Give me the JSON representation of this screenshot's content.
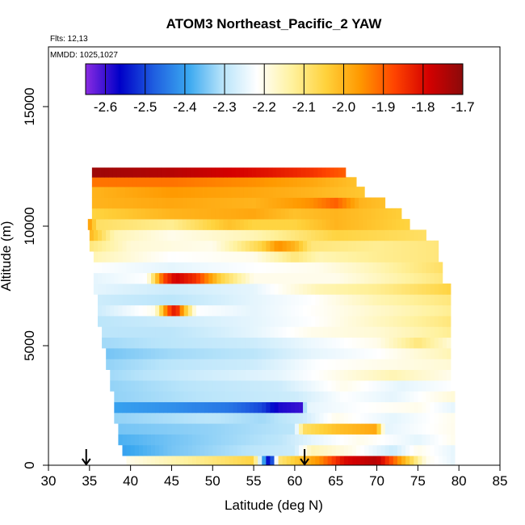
{
  "chart_data": {
    "type": "heatmap",
    "title": "ATOM3 Northeast_Pacific_2 YAW",
    "annotations": [
      "Flts: 12,13",
      "MMDD: 1025,1027"
    ],
    "xlabel": "Latitude (deg N)",
    "ylabel": "Altitude (m)",
    "xlim": [
      30,
      85
    ],
    "ylim": [
      0,
      17500
    ],
    "x_ticks": [
      30,
      35,
      40,
      45,
      50,
      55,
      60,
      65,
      70,
      75,
      80,
      85
    ],
    "y_ticks": [
      0,
      5000,
      10000,
      15000
    ],
    "grid": false,
    "colorbar": {
      "placement": "top-inside",
      "range": [
        -2.65,
        -1.7
      ],
      "ticks": [
        -2.6,
        -2.5,
        -2.4,
        -2.3,
        -2.2,
        -2.1,
        -2.0,
        -1.9,
        -1.8,
        -1.7
      ],
      "tick_labels": [
        "-2.6",
        "-2.5",
        "-2.4",
        "-2.3",
        "-2.2",
        "-2.1",
        "-2.0",
        "-1.9",
        "-1.8",
        "-1.7"
      ],
      "colors": [
        "#8a2be2",
        "#0000c8",
        "#1f5fe0",
        "#3aa8f0",
        "#b8e4fa",
        "#ffffff",
        "#fff2a0",
        "#ffd23c",
        "#ff9900",
        "#ff4400",
        "#d40000",
        "#8b0a0a"
      ]
    },
    "profile_markers_lat": [
      34.6,
      61.2
    ],
    "bands": [
      {
        "alt_low": 0,
        "alt_high": 400,
        "lat_start": 39.5,
        "lat_end": 79.5,
        "stops": [
          [
            39.5,
            -2.2
          ],
          [
            50,
            -2.1
          ],
          [
            55,
            -2.05
          ],
          [
            57,
            -2.62
          ],
          [
            58,
            -2.1
          ],
          [
            63,
            -1.95
          ],
          [
            66,
            -1.8
          ],
          [
            70,
            -1.75
          ],
          [
            72,
            -1.9
          ],
          [
            76,
            -2.2
          ],
          [
            79.5,
            -2.25
          ]
        ]
      },
      {
        "alt_low": 400,
        "alt_high": 850,
        "lat_start": 39,
        "lat_end": 79.5,
        "stops": [
          [
            39,
            -2.4
          ],
          [
            45,
            -2.35
          ],
          [
            55,
            -2.3
          ],
          [
            60,
            -2.28
          ],
          [
            62,
            -2.15
          ],
          [
            67,
            -2.2
          ],
          [
            72,
            -2.28
          ],
          [
            75,
            -2.2
          ],
          [
            79.5,
            -2.25
          ]
        ]
      },
      {
        "alt_low": 850,
        "alt_high": 1300,
        "lat_start": 38.5,
        "lat_end": 79.5,
        "stops": [
          [
            38.5,
            -2.38
          ],
          [
            50,
            -2.33
          ],
          [
            58,
            -2.3
          ],
          [
            62,
            -2.25
          ],
          [
            68,
            -2.2
          ],
          [
            75,
            -2.25
          ],
          [
            79.5,
            -2.2
          ]
        ]
      },
      {
        "alt_low": 1300,
        "alt_high": 1750,
        "lat_start": 38.5,
        "lat_end": 79.5,
        "stops": [
          [
            38.5,
            -2.35
          ],
          [
            50,
            -2.33
          ],
          [
            60,
            -2.3
          ],
          [
            61,
            -2.08
          ],
          [
            65,
            -2.02
          ],
          [
            70,
            -1.98
          ],
          [
            71,
            -2.25
          ],
          [
            79.5,
            -2.2
          ]
        ]
      },
      {
        "alt_low": 1750,
        "alt_high": 2200,
        "lat_start": 38,
        "lat_end": 79.5,
        "stops": [
          [
            38,
            -2.33
          ],
          [
            50,
            -2.3
          ],
          [
            56,
            -2.32
          ],
          [
            61,
            -2.28
          ],
          [
            65,
            -2.2
          ],
          [
            72,
            -2.25
          ],
          [
            79.5,
            -2.2
          ]
        ]
      },
      {
        "alt_low": 2200,
        "alt_high": 2650,
        "lat_start": 38,
        "lat_end": 79.5,
        "stops": [
          [
            38,
            -2.4
          ],
          [
            45,
            -2.42
          ],
          [
            52,
            -2.45
          ],
          [
            56,
            -2.5
          ],
          [
            58,
            -2.58
          ],
          [
            61,
            -2.6
          ],
          [
            61.3,
            -2.25
          ],
          [
            68,
            -2.22
          ],
          [
            75,
            -2.2
          ],
          [
            79.5,
            -2.25
          ]
        ]
      },
      {
        "alt_low": 2650,
        "alt_high": 3100,
        "lat_start": 38,
        "lat_end": 79.5,
        "stops": [
          [
            38,
            -2.33
          ],
          [
            50,
            -2.3
          ],
          [
            60,
            -2.28
          ],
          [
            66,
            -2.22
          ],
          [
            72,
            -2.25
          ],
          [
            79.5,
            -2.18
          ]
        ]
      },
      {
        "alt_low": 3100,
        "alt_high": 3550,
        "lat_start": 37.5,
        "lat_end": 79,
        "stops": [
          [
            37.5,
            -2.33
          ],
          [
            48,
            -2.3
          ],
          [
            58,
            -2.28
          ],
          [
            66,
            -2.2
          ],
          [
            73,
            -2.25
          ],
          [
            79,
            -2.22
          ]
        ]
      },
      {
        "alt_low": 3550,
        "alt_high": 4000,
        "lat_start": 37.5,
        "lat_end": 79,
        "stops": [
          [
            37.5,
            -2.32
          ],
          [
            48,
            -2.28
          ],
          [
            58,
            -2.25
          ],
          [
            65,
            -2.2
          ],
          [
            72,
            -2.15
          ],
          [
            79,
            -2.2
          ]
        ]
      },
      {
        "alt_low": 4000,
        "alt_high": 4450,
        "lat_start": 37,
        "lat_end": 79,
        "stops": [
          [
            37,
            -2.33
          ],
          [
            45,
            -2.3
          ],
          [
            55,
            -2.28
          ],
          [
            63,
            -2.22
          ],
          [
            70,
            -2.2
          ],
          [
            79,
            -2.18
          ]
        ]
      },
      {
        "alt_low": 4450,
        "alt_high": 4900,
        "lat_start": 37,
        "lat_end": 79,
        "stops": [
          [
            37,
            -2.35
          ],
          [
            45,
            -2.32
          ],
          [
            55,
            -2.3
          ],
          [
            62,
            -2.25
          ],
          [
            70,
            -2.22
          ],
          [
            79,
            -2.15
          ]
        ]
      },
      {
        "alt_low": 4900,
        "alt_high": 5350,
        "lat_start": 36.5,
        "lat_end": 79,
        "stops": [
          [
            36.5,
            -2.32
          ],
          [
            45,
            -2.3
          ],
          [
            55,
            -2.28
          ],
          [
            62,
            -2.24
          ],
          [
            70,
            -2.2
          ],
          [
            75,
            -2.1
          ],
          [
            79,
            -2.18
          ]
        ]
      },
      {
        "alt_low": 5350,
        "alt_high": 5800,
        "lat_start": 36.5,
        "lat_end": 79,
        "stops": [
          [
            36.5,
            -2.3
          ],
          [
            45,
            -2.3
          ],
          [
            55,
            -2.25
          ],
          [
            62,
            -2.2
          ],
          [
            70,
            -2.18
          ],
          [
            79,
            -2.12
          ]
        ]
      },
      {
        "alt_low": 5800,
        "alt_high": 6250,
        "lat_start": 36,
        "lat_end": 79,
        "stops": [
          [
            36,
            -2.3
          ],
          [
            45,
            -2.28
          ],
          [
            55,
            -2.25
          ],
          [
            62,
            -2.22
          ],
          [
            72,
            -2.15
          ],
          [
            79,
            -2.1
          ]
        ]
      },
      {
        "alt_low": 6250,
        "alt_high": 6700,
        "lat_start": 36,
        "lat_end": 79,
        "stops": [
          [
            36,
            -2.28
          ],
          [
            43,
            -2.2
          ],
          [
            44.5,
            -1.9
          ],
          [
            45.5,
            -1.8
          ],
          [
            46.5,
            -2.0
          ],
          [
            48,
            -2.22
          ],
          [
            55,
            -2.25
          ],
          [
            65,
            -2.2
          ],
          [
            79,
            -2.12
          ]
        ]
      },
      {
        "alt_low": 6700,
        "alt_high": 7150,
        "lat_start": 36,
        "lat_end": 79,
        "stops": [
          [
            36,
            -2.28
          ],
          [
            45,
            -2.3
          ],
          [
            55,
            -2.25
          ],
          [
            62,
            -2.22
          ],
          [
            70,
            -2.15
          ],
          [
            79,
            -2.1
          ]
        ]
      },
      {
        "alt_low": 7150,
        "alt_high": 7600,
        "lat_start": 35.5,
        "lat_end": 79,
        "stops": [
          [
            35.5,
            -2.25
          ],
          [
            45,
            -2.28
          ],
          [
            55,
            -2.25
          ],
          [
            63,
            -2.15
          ],
          [
            70,
            -2.12
          ],
          [
            79,
            -2.05
          ]
        ]
      },
      {
        "alt_low": 7600,
        "alt_high": 8050,
        "lat_start": 35.5,
        "lat_end": 78,
        "stops": [
          [
            35.5,
            -2.25
          ],
          [
            42,
            -2.22
          ],
          [
            44,
            -1.88
          ],
          [
            45.5,
            -1.78
          ],
          [
            48,
            -1.85
          ],
          [
            51,
            -2.05
          ],
          [
            55,
            -2.2
          ],
          [
            65,
            -2.2
          ],
          [
            78,
            -2.1
          ]
        ]
      },
      {
        "alt_low": 8050,
        "alt_high": 8500,
        "lat_start": 35.5,
        "lat_end": 78,
        "stops": [
          [
            35.5,
            -2.22
          ],
          [
            45,
            -2.25
          ],
          [
            55,
            -2.22
          ],
          [
            63,
            -2.2
          ],
          [
            70,
            -2.15
          ],
          [
            78,
            -2.08
          ]
        ]
      },
      {
        "alt_low": 8500,
        "alt_high": 8950,
        "lat_start": 35.5,
        "lat_end": 77.5,
        "stops": [
          [
            35.5,
            -2.15
          ],
          [
            45,
            -2.22
          ],
          [
            55,
            -2.2
          ],
          [
            60,
            -2.1
          ],
          [
            63,
            -2.15
          ],
          [
            70,
            -2.12
          ],
          [
            77.5,
            -2.1
          ]
        ]
      },
      {
        "alt_low": 8950,
        "alt_high": 9400,
        "lat_start": 35,
        "lat_end": 77.5,
        "stops": [
          [
            35,
            -2.1
          ],
          [
            40,
            -2.18
          ],
          [
            50,
            -2.2
          ],
          [
            56,
            -2.05
          ],
          [
            58,
            -1.95
          ],
          [
            60,
            -2.0
          ],
          [
            62,
            -2.1
          ],
          [
            70,
            -2.12
          ],
          [
            77.5,
            -2.1
          ]
        ]
      },
      {
        "alt_low": 9400,
        "alt_high": 9850,
        "lat_start": 35,
        "lat_end": 76,
        "stops": [
          [
            35,
            -2.0
          ],
          [
            38,
            -2.15
          ],
          [
            45,
            -2.2
          ],
          [
            55,
            -2.15
          ],
          [
            60,
            -2.1
          ],
          [
            65,
            -2.05
          ],
          [
            76,
            -2.08
          ]
        ]
      },
      {
        "alt_low": 9850,
        "alt_high": 10300,
        "lat_start": 34.8,
        "lat_end": 74,
        "stops": [
          [
            34.8,
            -1.95
          ],
          [
            36,
            -2.08
          ],
          [
            45,
            -2.12
          ],
          [
            52,
            -2.02
          ],
          [
            55,
            -2.05
          ],
          [
            60,
            -2.05
          ],
          [
            65,
            -2.0
          ],
          [
            74,
            -2.05
          ]
        ]
      },
      {
        "alt_low": 10300,
        "alt_high": 10750,
        "lat_start": 35.3,
        "lat_end": 73,
        "stops": [
          [
            35.3,
            -2.05
          ],
          [
            45,
            -2.0
          ],
          [
            55,
            -1.98
          ],
          [
            60,
            -2.02
          ],
          [
            65,
            -2.0
          ],
          [
            73,
            -2.04
          ]
        ]
      },
      {
        "alt_low": 10750,
        "alt_high": 11200,
        "lat_start": 35.3,
        "lat_end": 71,
        "stops": [
          [
            35.3,
            -2.0
          ],
          [
            45,
            -1.98
          ],
          [
            55,
            -2.0
          ],
          [
            62,
            -1.95
          ],
          [
            65,
            -1.9
          ],
          [
            68,
            -2.0
          ],
          [
            71,
            -2.02
          ]
        ]
      },
      {
        "alt_low": 11200,
        "alt_high": 11650,
        "lat_start": 35.3,
        "lat_end": 68.5,
        "stops": [
          [
            35.3,
            -2.0
          ],
          [
            45,
            -1.96
          ],
          [
            55,
            -1.98
          ],
          [
            62,
            -2.0
          ],
          [
            68.5,
            -2.03
          ]
        ]
      },
      {
        "alt_low": 11650,
        "alt_high": 12050,
        "lat_start": 35.3,
        "lat_end": 67.5,
        "stops": [
          [
            35.3,
            -1.92
          ],
          [
            45,
            -1.92
          ],
          [
            55,
            -1.95
          ],
          [
            62,
            -1.98
          ],
          [
            67.5,
            -2.02
          ]
        ]
      },
      {
        "alt_low": 12050,
        "alt_high": 12450,
        "lat_start": 35.3,
        "lat_end": 66.2,
        "stops": [
          [
            35.3,
            -1.72
          ],
          [
            45,
            -1.75
          ],
          [
            55,
            -1.8
          ],
          [
            62,
            -1.85
          ],
          [
            66.2,
            -1.9
          ]
        ]
      }
    ]
  }
}
